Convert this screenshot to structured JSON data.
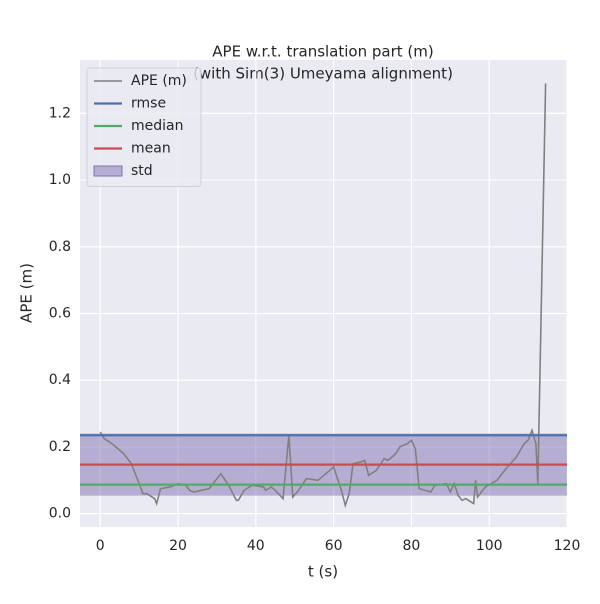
{
  "chart_data": {
    "type": "line",
    "title": [
      "APE w.r.t. translation part (m)",
      "(with Sim(3) Umeyama alignment)"
    ],
    "xlabel": "t (s)",
    "ylabel": "APE (m)",
    "xlim": [
      -5.2,
      120
    ],
    "ylim": [
      -0.04,
      1.36
    ],
    "xticks": [
      0,
      20,
      40,
      60,
      80,
      100,
      120
    ],
    "yticks": [
      {
        "value": 0,
        "label": "0.0"
      },
      {
        "value": 0.2,
        "label": "0.2"
      },
      {
        "value": 0.4,
        "label": "0.4"
      },
      {
        "value": 0.6,
        "label": "0.6"
      },
      {
        "value": 0.8,
        "label": "0.8"
      },
      {
        "value": 1.0,
        "label": "1.0"
      },
      {
        "value": 1.2,
        "label": "1.2"
      }
    ],
    "grid": true,
    "legend": "upper left",
    "series": [
      {
        "name": "APE (m)",
        "color": "#808080",
        "x": [
          0,
          1,
          3,
          6,
          8,
          10,
          11,
          12,
          14,
          14.5,
          15.5,
          18,
          20,
          22,
          23,
          24,
          28,
          31,
          33,
          35,
          35.5,
          37,
          39,
          42,
          42.5,
          44,
          45,
          47,
          48.5,
          49.5,
          51,
          53,
          56,
          60,
          62,
          63,
          64,
          65,
          67,
          68,
          69,
          71,
          73,
          74,
          76,
          77,
          79,
          80,
          81,
          82,
          85,
          86,
          89,
          90,
          91,
          92,
          93,
          94,
          96,
          96.5,
          97,
          99,
          102,
          104,
          107,
          109,
          110,
          111,
          112,
          112.5,
          114.5
        ],
        "values": [
          0.245,
          0.225,
          0.21,
          0.18,
          0.15,
          0.09,
          0.06,
          0.06,
          0.045,
          0.03,
          0.075,
          0.08,
          0.09,
          0.085,
          0.07,
          0.065,
          0.075,
          0.12,
          0.085,
          0.04,
          0.04,
          0.07,
          0.085,
          0.08,
          0.07,
          0.08,
          0.07,
          0.045,
          0.235,
          0.05,
          0.07,
          0.105,
          0.1,
          0.14,
          0.07,
          0.025,
          0.06,
          0.15,
          0.155,
          0.16,
          0.115,
          0.13,
          0.165,
          0.16,
          0.18,
          0.2,
          0.21,
          0.22,
          0.195,
          0.075,
          0.065,
          0.085,
          0.09,
          0.065,
          0.09,
          0.055,
          0.04,
          0.045,
          0.03,
          0.1,
          0.05,
          0.08,
          0.1,
          0.13,
          0.17,
          0.21,
          0.22,
          0.25,
          0.21,
          0.09,
          1.29
        ]
      }
    ],
    "stats": [
      {
        "name": "rmse",
        "color": "#4c72b0",
        "value": 0.235
      },
      {
        "name": "median",
        "color": "#55a868",
        "value": 0.087
      },
      {
        "name": "mean",
        "color": "#c44e52",
        "value": 0.147
      }
    ],
    "std": {
      "name": "std",
      "color": "#8172b2",
      "value": 0.093
    }
  }
}
